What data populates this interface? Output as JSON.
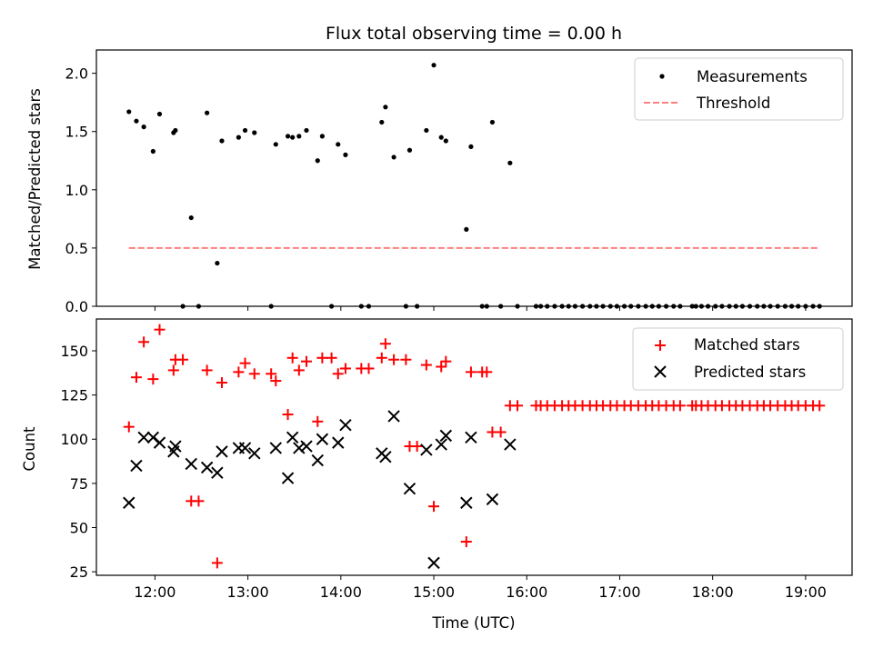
{
  "chart_data": [
    {
      "type": "scatter",
      "title": "Flux total observing time = 0.00 h",
      "xlabel": "",
      "ylabel": "Matched/Predicted stars",
      "ylim": [
        0,
        2.2
      ],
      "yticks": [
        0.0,
        0.5,
        1.0,
        1.5,
        2.0
      ],
      "ytick_labels": [
        "0.0",
        "0.5",
        "1.0",
        "1.5",
        "2.0"
      ],
      "xlim": [
        11.37,
        19.5
      ],
      "legend": "top-right",
      "series": [
        {
          "name": "Measurements",
          "color": "#000000",
          "marker": "dot",
          "x": [
            11.72,
            11.8,
            11.88,
            11.98,
            12.05,
            12.2,
            12.22,
            12.3,
            12.39,
            12.47,
            12.56,
            12.67,
            12.72,
            12.9,
            12.97,
            13.07,
            13.25,
            13.3,
            13.43,
            13.48,
            13.55,
            13.63,
            13.75,
            13.8,
            13.9,
            13.97,
            14.05,
            14.22,
            14.3,
            14.44,
            14.48,
            14.57,
            14.7,
            14.74,
            14.82,
            14.92,
            15.0,
            15.08,
            15.13,
            15.35,
            15.4,
            15.52,
            15.57,
            15.63,
            15.72,
            15.82,
            15.9,
            16.1,
            16.15,
            16.22,
            16.3,
            16.38,
            16.45,
            16.52,
            16.6,
            16.68,
            16.75,
            16.82,
            16.9,
            16.97,
            17.05,
            17.12,
            17.2,
            17.28,
            17.35,
            17.42,
            17.5,
            17.58,
            17.65,
            17.78,
            17.82,
            17.88,
            17.95,
            18.03,
            18.1,
            18.18,
            18.25,
            18.32,
            18.4,
            18.48,
            18.55,
            18.62,
            18.7,
            18.78,
            18.85,
            18.92,
            19.0,
            19.08,
            19.15
          ],
          "y": [
            1.67,
            1.59,
            1.54,
            1.33,
            1.65,
            1.49,
            1.51,
            0.0,
            0.76,
            0.0,
            1.66,
            0.37,
            1.42,
            1.45,
            1.51,
            1.49,
            0.0,
            1.39,
            1.46,
            1.45,
            1.46,
            1.51,
            1.25,
            1.46,
            0.0,
            1.39,
            1.3,
            0.0,
            0.0,
            1.58,
            1.71,
            1.28,
            0.0,
            1.34,
            0.0,
            1.51,
            2.07,
            1.45,
            1.42,
            0.66,
            1.37,
            0.0,
            0.0,
            1.58,
            0.0,
            1.23,
            0.0,
            0.0,
            0.0,
            0.0,
            0.0,
            0.0,
            0.0,
            0.0,
            0.0,
            0.0,
            0.0,
            0.0,
            0.0,
            0.0,
            0.0,
            0.0,
            0.0,
            0.0,
            0.0,
            0.0,
            0.0,
            0.0,
            0.0,
            0.0,
            0.0,
            0.0,
            0.0,
            0.0,
            0.0,
            0.0,
            0.0,
            0.0,
            0.0,
            0.0,
            0.0,
            0.0,
            0.0,
            0.0,
            0.0,
            0.0,
            0.0,
            0.0,
            0.0
          ]
        },
        {
          "name": "Threshold",
          "color": "#ff7f7f",
          "line_style": "dashed",
          "x": [
            11.72,
            19.15
          ],
          "y": [
            0.5,
            0.5
          ]
        }
      ]
    },
    {
      "type": "scatter",
      "title": "",
      "xlabel": "Time (UTC)",
      "ylabel": "Count",
      "ylim": [
        23,
        168
      ],
      "yticks": [
        25,
        50,
        75,
        100,
        125,
        150
      ],
      "ytick_labels": [
        "25",
        "50",
        "75",
        "100",
        "125",
        "150"
      ],
      "xlim": [
        11.37,
        19.5
      ],
      "xticks": [
        12,
        13,
        14,
        15,
        16,
        17,
        18,
        19
      ],
      "xtick_labels": [
        "12:00",
        "13:00",
        "14:00",
        "15:00",
        "16:00",
        "17:00",
        "18:00",
        "19:00"
      ],
      "legend": "top-right",
      "series": [
        {
          "name": "Matched stars",
          "color": "#ff0000",
          "marker": "plus",
          "x": [
            11.72,
            11.8,
            11.88,
            11.98,
            12.05,
            12.2,
            12.22,
            12.3,
            12.39,
            12.47,
            12.56,
            12.67,
            12.72,
            12.9,
            12.97,
            13.07,
            13.25,
            13.3,
            13.43,
            13.48,
            13.55,
            13.63,
            13.75,
            13.8,
            13.9,
            13.97,
            14.05,
            14.22,
            14.3,
            14.44,
            14.48,
            14.57,
            14.7,
            14.74,
            14.82,
            14.92,
            15.0,
            15.08,
            15.13,
            15.35,
            15.4,
            15.52,
            15.57,
            15.63,
            15.72,
            15.82,
            15.9,
            16.1,
            16.15,
            16.22,
            16.3,
            16.38,
            16.45,
            16.52,
            16.6,
            16.68,
            16.75,
            16.82,
            16.9,
            16.97,
            17.05,
            17.12,
            17.2,
            17.28,
            17.35,
            17.42,
            17.5,
            17.58,
            17.65,
            17.78,
            17.82,
            17.88,
            17.95,
            18.03,
            18.1,
            18.18,
            18.25,
            18.32,
            18.4,
            18.48,
            18.55,
            18.62,
            18.7,
            18.78,
            18.85,
            18.92,
            19.0,
            19.08,
            19.15
          ],
          "y": [
            107,
            135,
            155,
            134,
            162,
            139,
            145,
            145,
            65,
            65,
            139,
            30,
            132,
            138,
            143,
            137,
            137,
            133,
            114,
            146,
            139,
            144,
            110,
            146,
            146,
            137,
            140,
            140,
            140,
            146,
            154,
            145,
            145,
            96,
            96,
            142,
            62,
            141,
            144,
            42,
            138,
            138,
            138,
            104,
            104,
            119,
            119,
            119,
            119,
            119,
            119,
            119,
            119,
            119,
            119,
            119,
            119,
            119,
            119,
            119,
            119,
            119,
            119,
            119,
            119,
            119,
            119,
            119,
            119,
            119,
            119,
            119,
            119,
            119,
            119,
            119,
            119,
            119,
            119,
            119,
            119,
            119,
            119,
            119,
            119,
            119,
            119,
            119,
            119
          ]
        },
        {
          "name": "Predicted stars",
          "color": "#000000",
          "marker": "x",
          "x": [
            11.72,
            11.8,
            11.88,
            11.98,
            12.05,
            12.2,
            12.22,
            12.39,
            12.56,
            12.67,
            12.72,
            12.9,
            12.97,
            13.07,
            13.3,
            13.43,
            13.48,
            13.55,
            13.63,
            13.75,
            13.8,
            13.97,
            14.05,
            14.44,
            14.48,
            14.57,
            14.74,
            14.92,
            15.0,
            15.08,
            15.13,
            15.35,
            15.4,
            15.63,
            15.82
          ],
          "y": [
            64,
            85,
            101,
            101,
            98,
            93,
            96,
            86,
            84,
            81,
            93,
            95,
            95,
            92,
            95,
            78,
            101,
            95,
            96,
            88,
            100,
            98,
            108,
            92,
            90,
            113,
            72,
            94,
            30,
            97,
            102,
            64,
            101,
            66,
            97
          ]
        }
      ]
    }
  ]
}
